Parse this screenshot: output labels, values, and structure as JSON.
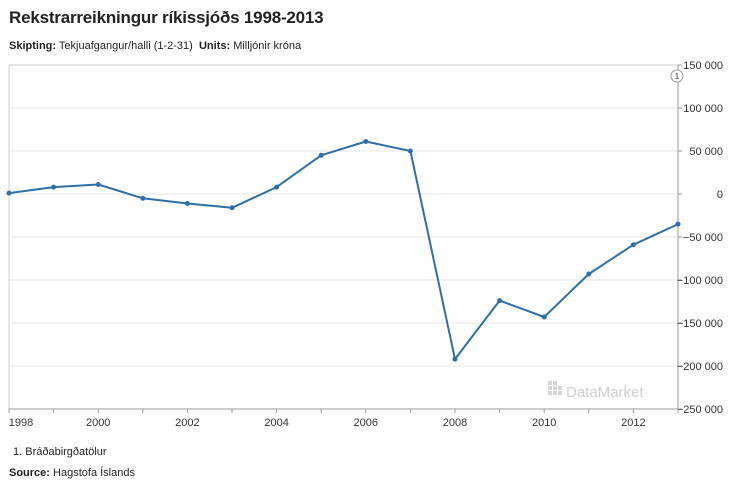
{
  "header": {
    "title": "Rekstrarreikningur ríkissjóðs 1998-2013",
    "dimension_label": "Skipting:",
    "dimension_value": "Tekjuafgangur/halli (1-2-31)",
    "units_label": "Units:",
    "units_value": "Milljónir króna"
  },
  "note_marker": "1",
  "watermark": "DataMarket",
  "footnote": "1.  Bráðabirgðatölur",
  "source": {
    "label": "Source:",
    "value": "Hagstofa Íslands"
  },
  "chart_data": {
    "type": "line",
    "title": "Rekstrarreikningur ríkissjóðs 1998-2013",
    "x": [
      1998,
      1999,
      2000,
      2001,
      2002,
      2003,
      2004,
      2005,
      2006,
      2007,
      2008,
      2009,
      2010,
      2011,
      2012,
      2013
    ],
    "series": [
      {
        "values": [
          1000,
          8000,
          11000,
          -5000,
          -11000,
          -16000,
          8000,
          45000,
          61000,
          50000,
          -192000,
          -124000,
          -143000,
          -93000,
          -59000,
          -35000
        ]
      }
    ],
    "x_tick_labels": [
      "1998",
      "2000",
      "2002",
      "2004",
      "2006",
      "2008",
      "2010",
      "2012"
    ],
    "x_tick_values": [
      1998,
      2000,
      2002,
      2004,
      2006,
      2008,
      2010,
      2012
    ],
    "y_tick_values": [
      150000,
      100000,
      50000,
      0,
      -50000,
      -100000,
      -150000,
      -200000,
      -250000
    ],
    "y_tick_labels": [
      "150 000",
      "100 000",
      "50 000",
      "0",
      "−50 000",
      "−100 000",
      "−150 000",
      "−200 000",
      "−250 000"
    ],
    "ylim": [
      -250000,
      150000
    ],
    "xlim": [
      1998,
      2013
    ],
    "grid": true,
    "line_color": "#2f6fa8"
  }
}
